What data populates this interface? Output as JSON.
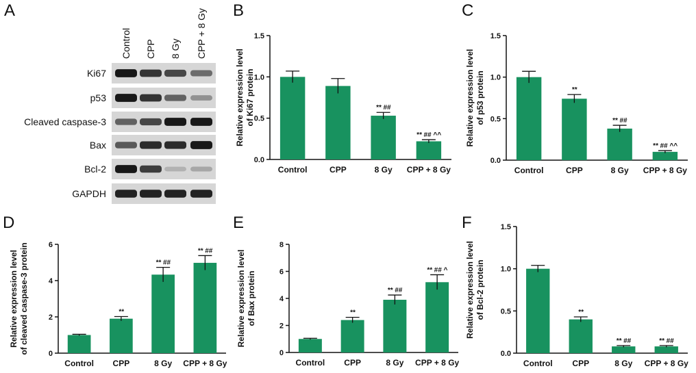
{
  "panels": {
    "A": {
      "letter": "A",
      "lanes": [
        "Control",
        "CPP",
        "8 Gy",
        "CPP + 8 Gy"
      ],
      "rows": [
        {
          "label": "Ki67",
          "intensity": [
            0.95,
            0.8,
            0.7,
            0.5
          ]
        },
        {
          "label": "p53",
          "intensity": [
            0.95,
            0.8,
            0.55,
            0.3
          ]
        },
        {
          "label": "Cleaved caspase-3",
          "intensity": [
            0.55,
            0.7,
            0.95,
            0.95
          ]
        },
        {
          "label": "Bax",
          "intensity": [
            0.6,
            0.85,
            0.85,
            0.95
          ]
        },
        {
          "label": "Bcl-2",
          "intensity": [
            0.95,
            0.75,
            0.12,
            0.18
          ]
        },
        {
          "label": "GAPDH",
          "intensity": [
            0.9,
            0.9,
            0.9,
            0.9
          ]
        }
      ]
    }
  },
  "chart_data": [
    {
      "panel": "B",
      "type": "bar",
      "categories": [
        "Control",
        "CPP",
        "8 Gy",
        "CPP + 8 Gy"
      ],
      "values": [
        1.0,
        0.89,
        0.53,
        0.22
      ],
      "errors": [
        0.07,
        0.09,
        0.04,
        0.02
      ],
      "annotations": [
        "",
        "",
        "** ##",
        "** ## ^^"
      ],
      "ylabel": [
        "Relative expression level",
        "of Ki67 protein"
      ],
      "ylim": [
        0,
        1.5
      ],
      "yticks": [
        "0.0",
        "0.5",
        "1.0",
        "1.5"
      ],
      "yticks_values": [
        0,
        0.5,
        1.0,
        1.5
      ],
      "color": "#18925f"
    },
    {
      "panel": "C",
      "type": "bar",
      "categories": [
        "Control",
        "CPP",
        "8 Gy",
        "CPP + 8 Gy"
      ],
      "values": [
        1.0,
        0.74,
        0.38,
        0.1
      ],
      "errors": [
        0.07,
        0.05,
        0.04,
        0.015
      ],
      "annotations": [
        "",
        "**",
        "** ##",
        "** ## ^^"
      ],
      "ylabel": [
        "Relative expression level",
        "of p53 protein"
      ],
      "ylim": [
        0,
        1.5
      ],
      "yticks": [
        "0.0",
        "0.5",
        "1.0",
        "1.5"
      ],
      "yticks_values": [
        0,
        0.5,
        1.0,
        1.5
      ],
      "color": "#18925f"
    },
    {
      "panel": "D",
      "type": "bar",
      "categories": [
        "Control",
        "CPP",
        "8 Gy",
        "CPP + 8 Gy"
      ],
      "values": [
        1.0,
        1.9,
        4.33,
        4.98
      ],
      "errors": [
        0.04,
        0.12,
        0.4,
        0.4
      ],
      "annotations": [
        "",
        "**",
        "** ##",
        "** ##"
      ],
      "ylabel": [
        "Relative expression level",
        "of cleaved caspase-3 protein"
      ],
      "ylim": [
        0,
        6
      ],
      "yticks": [
        "0",
        "2",
        "4",
        "6"
      ],
      "yticks_values": [
        0,
        2,
        4,
        6
      ],
      "color": "#18925f"
    },
    {
      "panel": "E",
      "type": "bar",
      "categories": [
        "Control",
        "CPP",
        "8 Gy",
        "CPP + 8 Gy"
      ],
      "values": [
        1.0,
        2.4,
        3.9,
        5.2
      ],
      "errors": [
        0.05,
        0.2,
        0.35,
        0.55
      ],
      "annotations": [
        "",
        "**",
        "** ##",
        "** ## ^"
      ],
      "ylabel": [
        "Relative expression level",
        "of Bax protein"
      ],
      "ylim": [
        0,
        8
      ],
      "yticks": [
        "0",
        "2",
        "4",
        "6",
        "8"
      ],
      "yticks_values": [
        0,
        2,
        4,
        6,
        8
      ],
      "color": "#18925f"
    },
    {
      "panel": "F",
      "type": "bar",
      "categories": [
        "Control",
        "CPP",
        "8 Gy",
        "CPP + 8 Gy"
      ],
      "values": [
        1.0,
        0.4,
        0.08,
        0.08
      ],
      "errors": [
        0.04,
        0.03,
        0.01,
        0.01
      ],
      "annotations": [
        "",
        "**",
        "** ##",
        "** ##"
      ],
      "ylabel": [
        "Relative expression level",
        "of Bcl-2 protein"
      ],
      "ylim": [
        0,
        1.5
      ],
      "yticks": [
        "0.0",
        "0.5",
        "1.0",
        "1.5"
      ],
      "yticks_values": [
        0,
        0.5,
        1.0,
        1.5
      ],
      "color": "#18925f"
    }
  ]
}
